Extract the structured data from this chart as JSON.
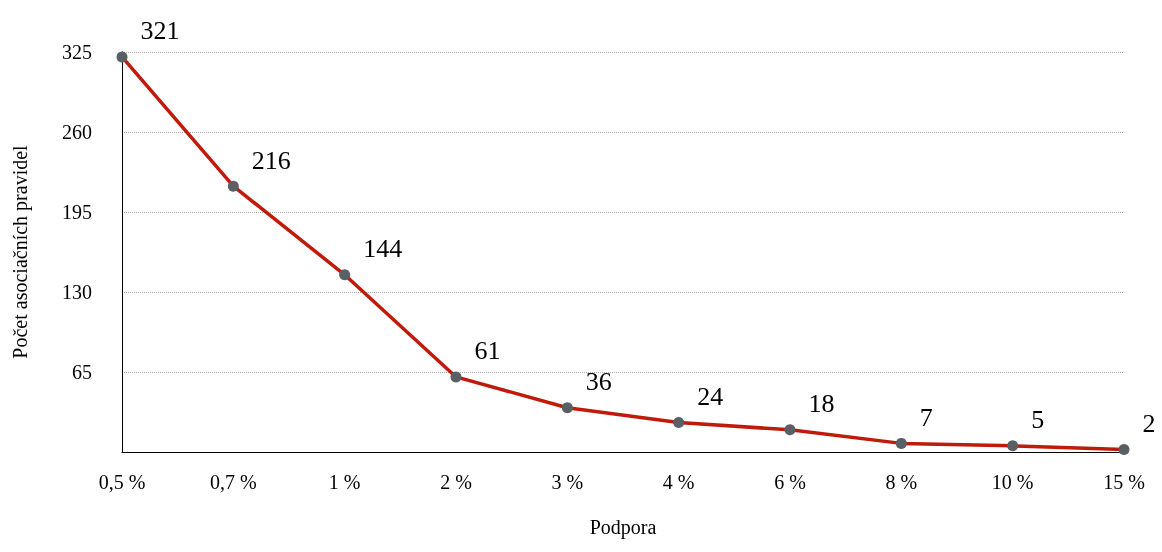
{
  "chart_data": {
    "type": "line",
    "xlabel": "Podpora",
    "ylabel": "Počet asociačních pravidel",
    "categories": [
      "0,5 %",
      "0,7 %",
      "1 %",
      "2 %",
      "3 %",
      "4 %",
      "6 %",
      "8 %",
      "10 %",
      "15 %"
    ],
    "series": [
      {
        "color": "#bf1a0a",
        "values": [
          321,
          216,
          144,
          61,
          36,
          24,
          18,
          7,
          5,
          2
        ]
      }
    ],
    "ylim": [
      0,
      325
    ],
    "yticks": [
      {
        "value": 0,
        "label": null
      },
      65,
      130,
      195,
      260,
      325
    ],
    "grid": "y",
    "marker": "circle",
    "line_style": "solid",
    "data_labels": true
  }
}
